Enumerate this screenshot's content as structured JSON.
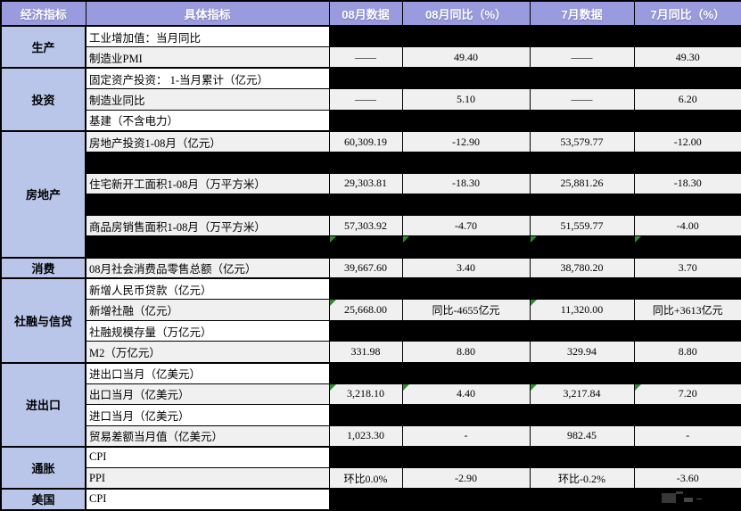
{
  "colors": {
    "header_bg": "#9a9ade",
    "header_text": "#ffffff",
    "category_bg": "#b9c6e9",
    "row_bg": "#f0f0f0",
    "hidden_cell_bg": "#000000",
    "border": "#000000",
    "green_flag": "#2e8b2e"
  },
  "table": {
    "headers": [
      "经济指标",
      "具体指标",
      "08月数据",
      "08月同比（%）",
      "7月数据",
      "7月同比（%）"
    ],
    "rows": [
      {
        "category": "生产",
        "span": 2,
        "label": "工业增加值：当月同比",
        "kind": "hidden"
      },
      {
        "label": "制造业PMI",
        "kind": "data",
        "values": [
          "——",
          "49.40",
          "——",
          "49.30"
        ]
      },
      {
        "category": "投资",
        "span": 3,
        "label": "固定资产投资： 1-当月累计（亿元）",
        "kind": "hidden"
      },
      {
        "label": "制造业同比",
        "kind": "data",
        "values": [
          "——",
          "5.10",
          "——",
          "6.20"
        ]
      },
      {
        "label": "基建（不含电力）",
        "kind": "hidden"
      },
      {
        "category": "房地产",
        "span": 6,
        "label": "房地产投资1-08月（亿元）",
        "kind": "data",
        "values": [
          "60,309.19",
          "-12.90",
          "53,579.77",
          "-12.00"
        ]
      },
      {
        "kind": "separator"
      },
      {
        "label": "住宅新开工面积1-08月（万平方米）",
        "kind": "data",
        "values": [
          "29,303.81",
          "-18.30",
          "25,881.26",
          "-18.30"
        ]
      },
      {
        "kind": "separator"
      },
      {
        "label": "商品房销售面积1-08月（万平方米）",
        "kind": "data",
        "values": [
          "57,303.92",
          "-4.70",
          "51,559.77",
          "-4.00"
        ]
      },
      {
        "kind": "separator",
        "flags": [
          true,
          true,
          true,
          true
        ]
      },
      {
        "category": "消费",
        "span": 1,
        "label": "08月社会消费品零售总额（亿元）",
        "kind": "data",
        "values": [
          "39,667.60",
          "3.40",
          "38,780.20",
          "3.70"
        ]
      },
      {
        "category": "社融与信贷",
        "span": 4,
        "label": "新增人民币贷款（亿元）",
        "kind": "hidden"
      },
      {
        "label": "新增社融（亿元）",
        "kind": "data",
        "values": [
          "25,668.00",
          "同比-4655亿元",
          "11,320.00",
          "同比+3613亿元"
        ],
        "flags": [
          true,
          false,
          true,
          false
        ]
      },
      {
        "label": "社融规模存量（万亿元）",
        "kind": "hidden"
      },
      {
        "label": "M2（万亿元）",
        "kind": "data",
        "values": [
          "331.98",
          "8.80",
          "329.94",
          "8.80"
        ]
      },
      {
        "category": "进出口",
        "span": 4,
        "label": "进出口当月（亿美元）",
        "kind": "hidden"
      },
      {
        "label": "出口当月（亿美元）",
        "kind": "data",
        "values": [
          "3,218.10",
          "4.40",
          "3,217.84",
          "7.20"
        ],
        "flags": [
          true,
          true,
          true,
          true
        ]
      },
      {
        "label": "进口当月（亿美元）",
        "kind": "hidden"
      },
      {
        "label": "贸易差额当月值（亿美元）",
        "kind": "data",
        "values": [
          "1,023.30",
          "-",
          "982.45",
          "-"
        ]
      },
      {
        "category": "通胀",
        "span": 2,
        "label": "CPI",
        "kind": "hidden"
      },
      {
        "label": "PPI",
        "kind": "data",
        "values": [
          "环比0.0%",
          "-2.90",
          "环比-0.2%",
          "-3.60"
        ]
      },
      {
        "category": "美国",
        "span": 1,
        "label": "CPI",
        "kind": "hidden",
        "watermark": true
      }
    ]
  }
}
